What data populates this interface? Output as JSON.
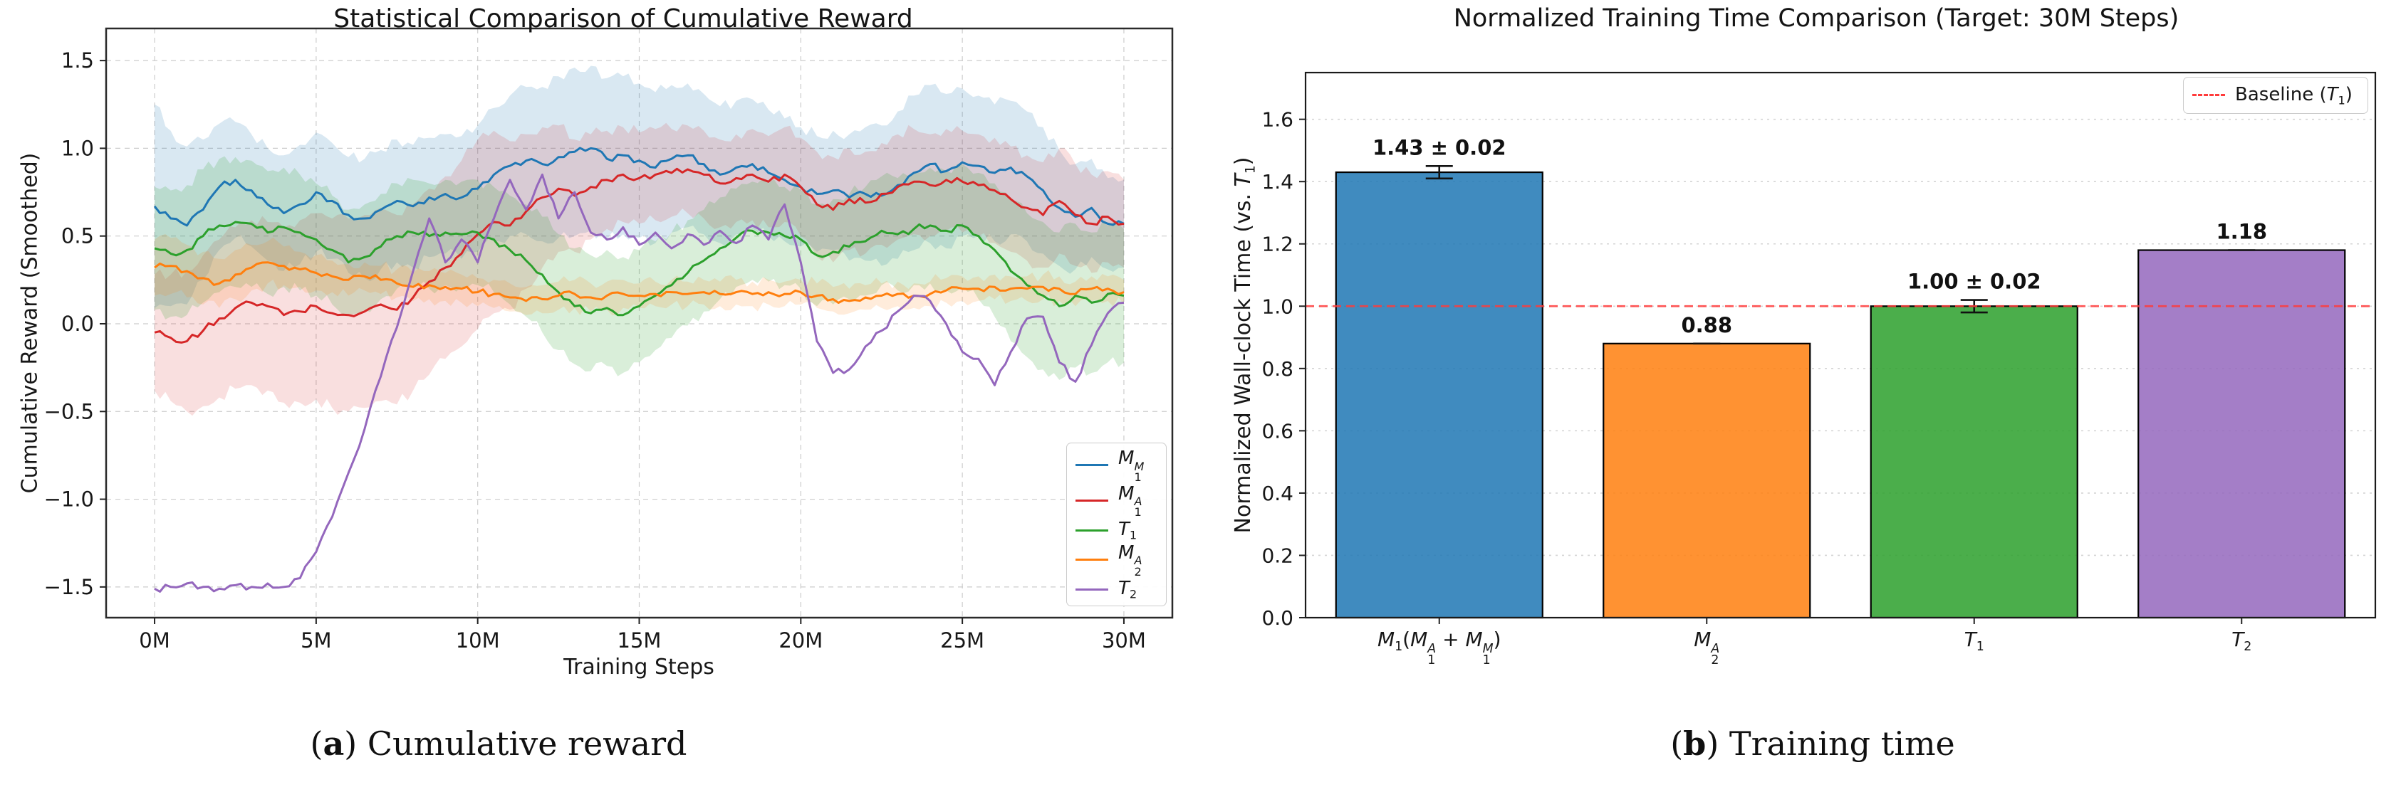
{
  "captions": {
    "a": {
      "open": "(",
      "letter": "a",
      "rest": ") Cumulative reward"
    },
    "b": {
      "open": "(",
      "letter": "b",
      "rest": ") Training time"
    }
  },
  "chart_data": [
    {
      "type": "line",
      "title": "Statistical Comparison of Cumulative Reward",
      "xlabel": "Training Steps",
      "ylabel": "Cumulative Reward (Smoothed)",
      "x_start": 0,
      "x_step": 0.5,
      "x_unit": "M steps",
      "xlim": [
        -1.5,
        31.5
      ],
      "ylim": [
        -1.675,
        1.683
      ],
      "grid": true,
      "legend_position": "lower right",
      "noise": 0.02,
      "xticks": [
        {
          "v": 0,
          "label": "0M"
        },
        {
          "v": 5,
          "label": "5M"
        },
        {
          "v": 10,
          "label": "10M"
        },
        {
          "v": 15,
          "label": "15M"
        },
        {
          "v": 20,
          "label": "20M"
        },
        {
          "v": 25,
          "label": "25M"
        },
        {
          "v": 30,
          "label": "30M"
        }
      ],
      "yticks": [
        {
          "v": 1.5,
          "label": "1.5"
        },
        {
          "v": 1.0,
          "label": "1.0"
        },
        {
          "v": 0.5,
          "label": "0.5"
        },
        {
          "v": 0.0,
          "label": "0.0"
        },
        {
          "v": -0.5,
          "label": "−0.5"
        },
        {
          "v": -1.0,
          "label": "−1.0"
        },
        {
          "v": -1.5,
          "label": "−1.5"
        }
      ],
      "series": [
        {
          "key": "M1M",
          "math": [
            {
              "t": "M",
              "i": true
            },
            {
              "sub": "1",
              "sup": "M"
            }
          ],
          "color": "#1f77b4",
          "band_alpha": 0.17,
          "y": [
            0.67,
            0.6,
            0.56,
            0.65,
            0.78,
            0.82,
            0.76,
            0.68,
            0.63,
            0.68,
            0.75,
            0.7,
            0.62,
            0.6,
            0.65,
            0.7,
            0.67,
            0.72,
            0.74,
            0.72,
            0.77,
            0.85,
            0.9,
            0.93,
            0.91,
            0.95,
            0.98,
            1.0,
            0.94,
            0.96,
            0.93,
            0.89,
            0.94,
            0.96,
            0.91,
            0.85,
            0.89,
            0.91,
            0.86,
            0.82,
            0.78,
            0.74,
            0.76,
            0.72,
            0.74,
            0.73,
            0.79,
            0.86,
            0.91,
            0.87,
            0.92,
            0.9,
            0.86,
            0.89,
            0.84,
            0.76,
            0.66,
            0.61,
            0.66,
            0.57,
            0.57
          ],
          "band": [
            0.58,
            0.5,
            0.45,
            0.4,
            0.36,
            0.33,
            0.32,
            0.32,
            0.33,
            0.34,
            0.34,
            0.33,
            0.33,
            0.34,
            0.34,
            0.35,
            0.35,
            0.34,
            0.34,
            0.35,
            0.36,
            0.38,
            0.4,
            0.42,
            0.44,
            0.46,
            0.48,
            0.47,
            0.46,
            0.45,
            0.44,
            0.43,
            0.42,
            0.41,
            0.4,
            0.39,
            0.38,
            0.37,
            0.36,
            0.35,
            0.34,
            0.33,
            0.34,
            0.36,
            0.38,
            0.4,
            0.42,
            0.44,
            0.45,
            0.44,
            0.42,
            0.4,
            0.39,
            0.38,
            0.37,
            0.36,
            0.33,
            0.3,
            0.28,
            0.26,
            0.25
          ]
        },
        {
          "key": "M1A",
          "math": [
            {
              "t": "M",
              "i": true
            },
            {
              "sub": "1",
              "sup": "A"
            }
          ],
          "color": "#d62728",
          "band_alpha": 0.15,
          "y": [
            -0.05,
            -0.08,
            -0.1,
            -0.04,
            0.03,
            0.09,
            0.12,
            0.1,
            0.05,
            0.07,
            0.1,
            0.06,
            0.05,
            0.07,
            0.11,
            0.08,
            0.15,
            0.24,
            0.32,
            0.4,
            0.51,
            0.58,
            0.56,
            0.64,
            0.72,
            0.77,
            0.73,
            0.78,
            0.82,
            0.85,
            0.83,
            0.85,
            0.86,
            0.88,
            0.85,
            0.8,
            0.83,
            0.85,
            0.81,
            0.85,
            0.78,
            0.68,
            0.65,
            0.71,
            0.69,
            0.74,
            0.78,
            0.81,
            0.79,
            0.82,
            0.81,
            0.79,
            0.76,
            0.71,
            0.66,
            0.62,
            0.7,
            0.62,
            0.57,
            0.61,
            0.57
          ],
          "band": [
            0.33,
            0.36,
            0.4,
            0.43,
            0.45,
            0.46,
            0.47,
            0.48,
            0.5,
            0.52,
            0.53,
            0.54,
            0.55,
            0.55,
            0.55,
            0.54,
            0.53,
            0.53,
            0.52,
            0.53,
            0.54,
            0.52,
            0.48,
            0.44,
            0.4,
            0.36,
            0.32,
            0.3,
            0.28,
            0.27,
            0.26,
            0.26,
            0.25,
            0.25,
            0.25,
            0.25,
            0.25,
            0.26,
            0.26,
            0.27,
            0.28,
            0.3,
            0.3,
            0.29,
            0.29,
            0.29,
            0.3,
            0.3,
            0.29,
            0.29,
            0.29,
            0.29,
            0.3,
            0.3,
            0.3,
            0.3,
            0.3,
            0.29,
            0.28,
            0.26,
            0.25
          ]
        },
        {
          "key": "T1",
          "math": [
            {
              "t": "T",
              "i": true
            },
            {
              "sub": "1"
            }
          ],
          "color": "#2ca02c",
          "band_alpha": 0.18,
          "y": [
            0.43,
            0.4,
            0.42,
            0.5,
            0.56,
            0.58,
            0.57,
            0.52,
            0.55,
            0.52,
            0.48,
            0.42,
            0.35,
            0.38,
            0.44,
            0.5,
            0.52,
            0.5,
            0.52,
            0.51,
            0.52,
            0.48,
            0.42,
            0.36,
            0.28,
            0.18,
            0.1,
            0.06,
            0.09,
            0.05,
            0.1,
            0.16,
            0.22,
            0.29,
            0.36,
            0.43,
            0.49,
            0.53,
            0.52,
            0.5,
            0.48,
            0.39,
            0.41,
            0.44,
            0.47,
            0.53,
            0.51,
            0.54,
            0.56,
            0.53,
            0.56,
            0.5,
            0.42,
            0.3,
            0.22,
            0.16,
            0.1,
            0.16,
            0.12,
            0.17,
            0.16
          ],
          "band": [
            0.35,
            0.36,
            0.37,
            0.38,
            0.38,
            0.37,
            0.36,
            0.35,
            0.34,
            0.33,
            0.32,
            0.31,
            0.3,
            0.3,
            0.3,
            0.3,
            0.3,
            0.3,
            0.3,
            0.3,
            0.3,
            0.3,
            0.31,
            0.32,
            0.33,
            0.33,
            0.33,
            0.33,
            0.33,
            0.33,
            0.32,
            0.31,
            0.3,
            0.3,
            0.29,
            0.29,
            0.28,
            0.28,
            0.28,
            0.28,
            0.28,
            0.29,
            0.3,
            0.3,
            0.31,
            0.31,
            0.32,
            0.32,
            0.33,
            0.34,
            0.35,
            0.36,
            0.38,
            0.4,
            0.41,
            0.42,
            0.42,
            0.41,
            0.4,
            0.39,
            0.38
          ]
        },
        {
          "key": "M2A",
          "math": [
            {
              "t": "M",
              "i": true
            },
            {
              "sub": "2",
              "sup": "A"
            }
          ],
          "color": "#ff7f0e",
          "band_alpha": 0.15,
          "y": [
            0.32,
            0.33,
            0.3,
            0.26,
            0.23,
            0.28,
            0.32,
            0.35,
            0.33,
            0.31,
            0.29,
            0.27,
            0.25,
            0.27,
            0.25,
            0.23,
            0.21,
            0.22,
            0.21,
            0.2,
            0.18,
            0.17,
            0.15,
            0.13,
            0.14,
            0.16,
            0.17,
            0.15,
            0.16,
            0.17,
            0.16,
            0.17,
            0.18,
            0.17,
            0.18,
            0.17,
            0.18,
            0.17,
            0.18,
            0.17,
            0.18,
            0.16,
            0.14,
            0.13,
            0.15,
            0.16,
            0.17,
            0.16,
            0.17,
            0.19,
            0.2,
            0.2,
            0.21,
            0.2,
            0.2,
            0.21,
            0.2,
            0.17,
            0.2,
            0.2,
            0.18
          ],
          "band": [
            0.16,
            0.16,
            0.15,
            0.15,
            0.14,
            0.14,
            0.13,
            0.12,
            0.11,
            0.1,
            0.1,
            0.09,
            0.09,
            0.08,
            0.08,
            0.08,
            0.08,
            0.08,
            0.08,
            0.08,
            0.08,
            0.08,
            0.08,
            0.08,
            0.08,
            0.08,
            0.08,
            0.08,
            0.08,
            0.08,
            0.07,
            0.07,
            0.07,
            0.07,
            0.07,
            0.07,
            0.07,
            0.07,
            0.07,
            0.07,
            0.07,
            0.07,
            0.07,
            0.07,
            0.07,
            0.07,
            0.07,
            0.07,
            0.07,
            0.07,
            0.07,
            0.07,
            0.07,
            0.07,
            0.07,
            0.07,
            0.07,
            0.07,
            0.07,
            0.07,
            0.07
          ]
        },
        {
          "key": "T2",
          "math": [
            {
              "t": "T",
              "i": true
            },
            {
              "sub": "2"
            }
          ],
          "color": "#9467bd",
          "band_alpha": 0,
          "y": [
            -1.51,
            -1.5,
            -1.48,
            -1.5,
            -1.51,
            -1.49,
            -1.5,
            -1.48,
            -1.5,
            -1.45,
            -1.3,
            -1.1,
            -0.85,
            -0.6,
            -0.3,
            -0.02,
            0.3,
            0.6,
            0.35,
            0.48,
            0.35,
            0.6,
            0.82,
            0.65,
            0.85,
            0.6,
            0.75,
            0.52,
            0.48,
            0.55,
            0.45,
            0.52,
            0.43,
            0.51,
            0.45,
            0.53,
            0.46,
            0.56,
            0.48,
            0.68,
            0.35,
            -0.1,
            -0.28,
            -0.26,
            -0.13,
            -0.04,
            0.07,
            0.16,
            0.13,
            0.0,
            -0.16,
            -0.2,
            -0.35,
            -0.16,
            0.03,
            0.04,
            -0.22,
            -0.33,
            -0.12,
            0.06,
            0.12
          ],
          "band": null
        }
      ]
    },
    {
      "type": "bar",
      "title": "Normalized Training Time Comparison (Target: 30M Steps)",
      "ylabel_math": [
        {
          "t": "Normalized Wall-clock Time (vs. "
        },
        {
          "t": "T",
          "i": true
        },
        {
          "sub": "1"
        },
        {
          "t": ")"
        }
      ],
      "ylim": [
        0,
        1.75
      ],
      "grid": true,
      "yticks": [
        {
          "v": 0.0,
          "label": "0.0"
        },
        {
          "v": 0.2,
          "label": "0.2"
        },
        {
          "v": 0.4,
          "label": "0.4"
        },
        {
          "v": 0.6,
          "label": "0.6"
        },
        {
          "v": 0.8,
          "label": "0.8"
        },
        {
          "v": 1.0,
          "label": "1.0"
        },
        {
          "v": 1.2,
          "label": "1.2"
        },
        {
          "v": 1.4,
          "label": "1.4"
        },
        {
          "v": 1.6,
          "label": "1.6"
        }
      ],
      "bar_alpha": 0.85,
      "bars": [
        {
          "key": "M1",
          "math": [
            {
              "t": "M",
              "i": true
            },
            {
              "sub": "1"
            },
            {
              "t": "("
            },
            {
              "t": "M",
              "i": true
            },
            {
              "sub": "1",
              "sup": "A"
            },
            {
              "t": " + "
            },
            {
              "t": "M",
              "i": true
            },
            {
              "sub": "1",
              "sup": "M"
            },
            {
              "t": ")"
            }
          ],
          "value": 1.43,
          "err": 0.02,
          "label": "1.43 ± 0.02",
          "color": "#1f77b4"
        },
        {
          "key": "M2A",
          "math": [
            {
              "t": "M",
              "i": true
            },
            {
              "sub": "2",
              "sup": "A"
            }
          ],
          "value": 0.88,
          "err": 0,
          "label": "0.88",
          "color": "#ff7f0e"
        },
        {
          "key": "T1",
          "math": [
            {
              "t": "T",
              "i": true
            },
            {
              "sub": "1"
            }
          ],
          "value": 1.0,
          "err": 0.02,
          "label": "1.00 ± 0.02",
          "color": "#2ca02c"
        },
        {
          "key": "T2",
          "math": [
            {
              "t": "T",
              "i": true
            },
            {
              "sub": "2"
            }
          ],
          "value": 1.18,
          "err": 0,
          "label": "1.18",
          "color": "#9467bd"
        }
      ],
      "baseline": {
        "value": 1.0,
        "color": "#ff3b3b",
        "label_math": [
          {
            "t": "Baseline ("
          },
          {
            "t": "T",
            "i": true
          },
          {
            "sub": "1"
          },
          {
            "t": ")"
          }
        ]
      }
    }
  ]
}
